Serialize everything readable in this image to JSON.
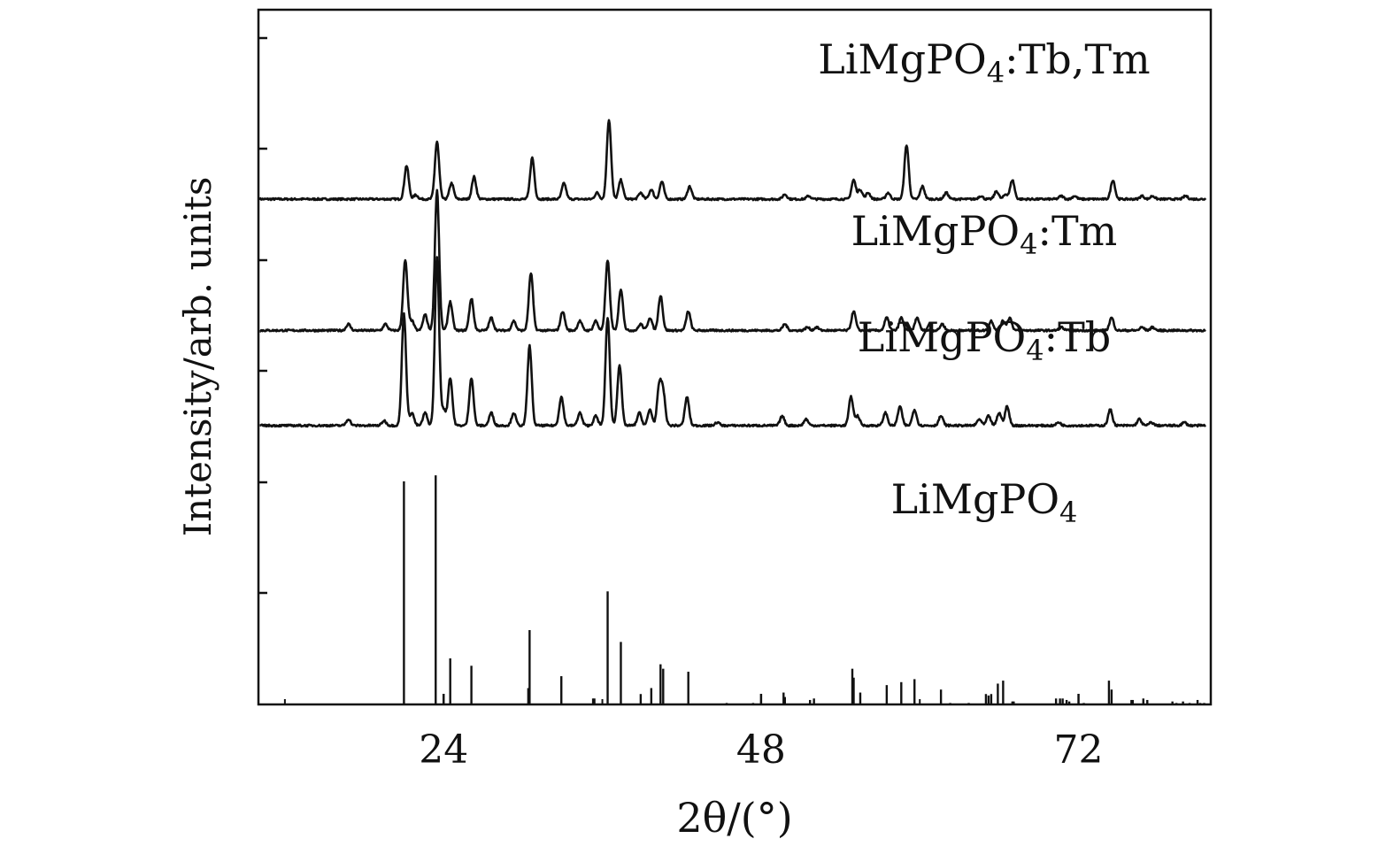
{
  "chart_data": {
    "type": "line",
    "xlabel": "2θ/(°)",
    "ylabel": "Intensity/arb. units",
    "xlim": [
      10,
      82
    ],
    "xticks": [
      24,
      48,
      72
    ],
    "x_minor_ticks": [
      12,
      36,
      60
    ],
    "y_ticks_shown": true,
    "y_tick_labels_shown": false,
    "grid": false,
    "legend": "none",
    "line_color": "#111111",
    "series": [
      {
        "name": "LiMgPO4:Tb,Tm",
        "label_main": "LiMgPO",
        "label_sub": "4",
        "label_rest": ":Tb,Tm",
        "baseline": 6.9,
        "noise": 0.03,
        "peaks": [
          [
            21.2,
            1.05
          ],
          [
            21.9,
            0.13
          ],
          [
            23.5,
            1.8
          ],
          [
            24.6,
            0.5
          ],
          [
            26.3,
            0.7
          ],
          [
            30.7,
            1.3
          ],
          [
            33.1,
            0.5
          ],
          [
            35.6,
            0.2
          ],
          [
            36.5,
            2.5
          ],
          [
            37.4,
            0.6
          ],
          [
            38.9,
            0.2
          ],
          [
            39.7,
            0.3
          ],
          [
            40.5,
            0.55
          ],
          [
            42.6,
            0.4
          ],
          [
            49.8,
            0.15
          ],
          [
            51.6,
            0.1
          ],
          [
            55.0,
            0.6
          ],
          [
            55.5,
            0.3
          ],
          [
            56.1,
            0.2
          ],
          [
            57.6,
            0.2
          ],
          [
            59.0,
            1.7
          ],
          [
            60.2,
            0.4
          ],
          [
            62.0,
            0.2
          ],
          [
            64.6,
            0.1
          ],
          [
            65.8,
            0.25
          ],
          [
            66.5,
            0.15
          ],
          [
            67.0,
            0.6
          ],
          [
            70.7,
            0.1
          ],
          [
            71.7,
            0.1
          ],
          [
            74.6,
            0.6
          ],
          [
            76.8,
            0.1
          ],
          [
            77.6,
            0.1
          ],
          [
            80.1,
            0.1
          ]
        ]
      },
      {
        "name": "LiMgPO4:Tm",
        "label_main": "LiMgPO",
        "label_sub": "4",
        "label_rest": ":Tm",
        "baseline": 4.0,
        "noise": 0.03,
        "peaks": [
          [
            16.8,
            0.2
          ],
          [
            19.6,
            0.2
          ],
          [
            21.1,
            2.2
          ],
          [
            21.6,
            0.3
          ],
          [
            22.6,
            0.5
          ],
          [
            23.5,
            4.4
          ],
          [
            24.5,
            0.9
          ],
          [
            26.1,
            1.0
          ],
          [
            27.6,
            0.4
          ],
          [
            29.3,
            0.3
          ],
          [
            30.6,
            1.8
          ],
          [
            33.0,
            0.6
          ],
          [
            34.3,
            0.3
          ],
          [
            35.5,
            0.3
          ],
          [
            36.4,
            2.2
          ],
          [
            37.4,
            1.3
          ],
          [
            38.9,
            0.2
          ],
          [
            39.6,
            0.4
          ],
          [
            40.4,
            1.1
          ],
          [
            42.5,
            0.6
          ],
          [
            49.8,
            0.2
          ],
          [
            51.5,
            0.1
          ],
          [
            52.2,
            0.1
          ],
          [
            55.0,
            0.6
          ],
          [
            57.5,
            0.4
          ],
          [
            58.6,
            0.4
          ],
          [
            59.8,
            0.4
          ],
          [
            61.7,
            0.2
          ],
          [
            65.4,
            0.3
          ],
          [
            66.3,
            0.3
          ],
          [
            66.8,
            0.4
          ],
          [
            70.7,
            0.1
          ],
          [
            74.5,
            0.4
          ],
          [
            76.8,
            0.1
          ],
          [
            77.6,
            0.1
          ]
        ]
      },
      {
        "name": "LiMgPO4:Tb",
        "label_main": "LiMgPO",
        "label_sub": "4",
        "label_rest": ":Tb",
        "baseline": 1.9,
        "noise": 0.03,
        "peaks": [
          [
            16.8,
            0.2
          ],
          [
            19.5,
            0.15
          ],
          [
            21.0,
            3.5
          ],
          [
            21.6,
            0.4
          ],
          [
            22.6,
            0.4
          ],
          [
            23.5,
            5.3
          ],
          [
            24.0,
            0.5
          ],
          [
            24.5,
            1.5
          ],
          [
            26.1,
            1.5
          ],
          [
            27.6,
            0.4
          ],
          [
            29.3,
            0.4
          ],
          [
            30.5,
            2.5
          ],
          [
            32.9,
            0.9
          ],
          [
            34.3,
            0.4
          ],
          [
            35.5,
            0.3
          ],
          [
            36.4,
            3.4
          ],
          [
            37.3,
            1.9
          ],
          [
            38.8,
            0.4
          ],
          [
            39.6,
            0.5
          ],
          [
            40.3,
            1.2
          ],
          [
            40.6,
            1.0
          ],
          [
            42.4,
            0.9
          ],
          [
            44.7,
            0.1
          ],
          [
            49.6,
            0.3
          ],
          [
            51.4,
            0.2
          ],
          [
            54.8,
            0.9
          ],
          [
            55.3,
            0.3
          ],
          [
            57.4,
            0.4
          ],
          [
            58.5,
            0.6
          ],
          [
            59.6,
            0.5
          ],
          [
            61.6,
            0.3
          ],
          [
            64.5,
            0.2
          ],
          [
            65.2,
            0.3
          ],
          [
            66.0,
            0.4
          ],
          [
            66.6,
            0.6
          ],
          [
            70.5,
            0.1
          ],
          [
            74.4,
            0.5
          ],
          [
            76.6,
            0.2
          ],
          [
            77.5,
            0.1
          ],
          [
            80.0,
            0.1
          ]
        ]
      },
      {
        "name": "LiMgPO4",
        "label_main": "LiMgPO",
        "label_sub": "4",
        "label_rest": "",
        "type": "stick",
        "baseline": -4.2,
        "sticks": [
          [
            21.0,
            7.5
          ],
          [
            23.4,
            7.7
          ],
          [
            24.5,
            1.55
          ],
          [
            26.1,
            1.3
          ],
          [
            30.4,
            0.55
          ],
          [
            30.5,
            2.5
          ],
          [
            32.9,
            0.95
          ],
          [
            35.3,
            0.2
          ],
          [
            35.4,
            0.2
          ],
          [
            36.4,
            3.8
          ],
          [
            37.4,
            2.1
          ],
          [
            38.9,
            0.35
          ],
          [
            39.7,
            0.55
          ],
          [
            40.4,
            1.35
          ],
          [
            40.6,
            1.2
          ],
          [
            42.5,
            1.1
          ],
          [
            45.4,
            0.05
          ],
          [
            47.4,
            0.05
          ],
          [
            49.7,
            0.4
          ],
          [
            49.8,
            0.25
          ],
          [
            51.7,
            0.15
          ],
          [
            52.0,
            0.2
          ],
          [
            54.9,
            1.2
          ],
          [
            55.0,
            0.9
          ],
          [
            55.5,
            0.4
          ],
          [
            57.5,
            0.65
          ],
          [
            58.6,
            0.75
          ],
          [
            59.6,
            0.85
          ],
          [
            61.6,
            0.5
          ],
          [
            62.3,
            0.05
          ],
          [
            63.7,
            0.05
          ],
          [
            65.0,
            0.35
          ],
          [
            65.2,
            0.3
          ],
          [
            65.4,
            0.35
          ],
          [
            65.9,
            0.7
          ],
          [
            66.3,
            0.8
          ],
          [
            67.0,
            0.1
          ],
          [
            67.1,
            0.1
          ],
          [
            70.3,
            0.2
          ],
          [
            70.6,
            0.2
          ],
          [
            70.8,
            0.2
          ],
          [
            71.1,
            0.15
          ],
          [
            71.3,
            0.1
          ],
          [
            72.4,
            0.05
          ],
          [
            74.3,
            0.8
          ],
          [
            74.5,
            0.5
          ],
          [
            76.0,
            0.15
          ],
          [
            76.1,
            0.15
          ],
          [
            76.9,
            0.2
          ],
          [
            77.2,
            0.15
          ],
          [
            79.1,
            0.1
          ],
          [
            79.4,
            0.05
          ],
          [
            79.9,
            0.1
          ],
          [
            80.4,
            0.05
          ],
          [
            81.0,
            0.15
          ],
          [
            81.2,
            0.05
          ],
          [
            81.5,
            0.05
          ]
        ]
      }
    ]
  }
}
